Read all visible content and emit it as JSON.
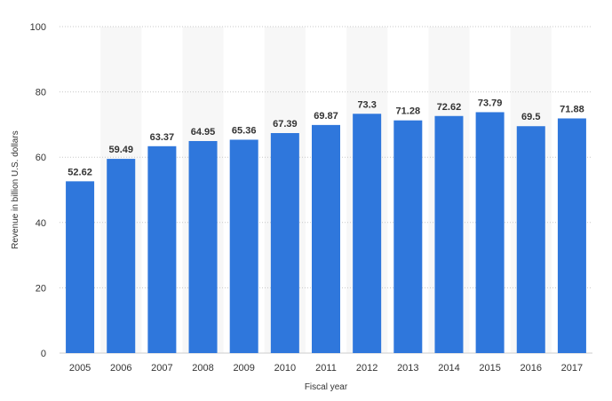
{
  "chart_data": {
    "type": "bar",
    "categories": [
      "2005",
      "2006",
      "2007",
      "2008",
      "2009",
      "2010",
      "2011",
      "2012",
      "2013",
      "2014",
      "2015",
      "2016",
      "2017"
    ],
    "values": [
      52.62,
      59.49,
      63.37,
      64.95,
      65.36,
      67.39,
      69.87,
      73.3,
      71.28,
      72.62,
      73.79,
      69.5,
      71.88
    ],
    "value_labels": [
      "52.62",
      "59.49",
      "63.37",
      "64.95",
      "65.36",
      "67.39",
      "69.87",
      "73.3",
      "71.28",
      "72.62",
      "73.79",
      "69.5",
      "71.88"
    ],
    "xlabel": "Fiscal year",
    "ylabel": "Revenue in billion U.S. dollars",
    "ylim": [
      0,
      100
    ],
    "yticks": [
      0,
      20,
      40,
      60,
      80,
      100
    ],
    "grid": true,
    "bar_color": "#2f77dc",
    "band_color": "#f7f7f7"
  }
}
